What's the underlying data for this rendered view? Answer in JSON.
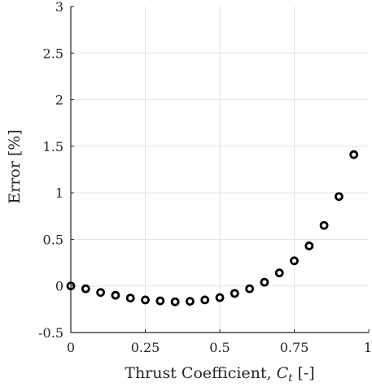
{
  "chart_data": {
    "type": "scatter",
    "title": "",
    "xlabel": "Thrust Coefficient, ",
    "xlabel_symbol": "C",
    "xlabel_subscript": "t",
    "xlabel_unit": " [-]",
    "ylabel": "Error [%]",
    "xlim": [
      0,
      1
    ],
    "ylim": [
      -0.5,
      3
    ],
    "x_ticks": [
      0,
      0.25,
      0.5,
      0.75,
      1
    ],
    "x_tick_labels": [
      "0",
      "0.25",
      "0.5",
      "0.75",
      "1"
    ],
    "y_ticks": [
      -0.5,
      0,
      0.5,
      1,
      1.5,
      2,
      2.5,
      3
    ],
    "y_tick_labels": [
      "-0.5",
      "0",
      "0.5",
      "1",
      "1.5",
      "2",
      "2.5",
      "3"
    ],
    "grid": true,
    "marker": "open-circle",
    "marker_color": "#000000",
    "x": [
      0,
      0.05,
      0.1,
      0.15,
      0.2,
      0.25,
      0.3,
      0.35,
      0.4,
      0.45,
      0.5,
      0.55,
      0.6,
      0.65,
      0.7,
      0.75,
      0.8,
      0.85,
      0.9,
      0.95
    ],
    "y": [
      0.0,
      -0.03,
      -0.07,
      -0.1,
      -0.13,
      -0.15,
      -0.16,
      -0.17,
      -0.165,
      -0.15,
      -0.125,
      -0.08,
      -0.03,
      0.04,
      0.14,
      0.27,
      0.43,
      0.65,
      0.96,
      1.41
    ]
  }
}
